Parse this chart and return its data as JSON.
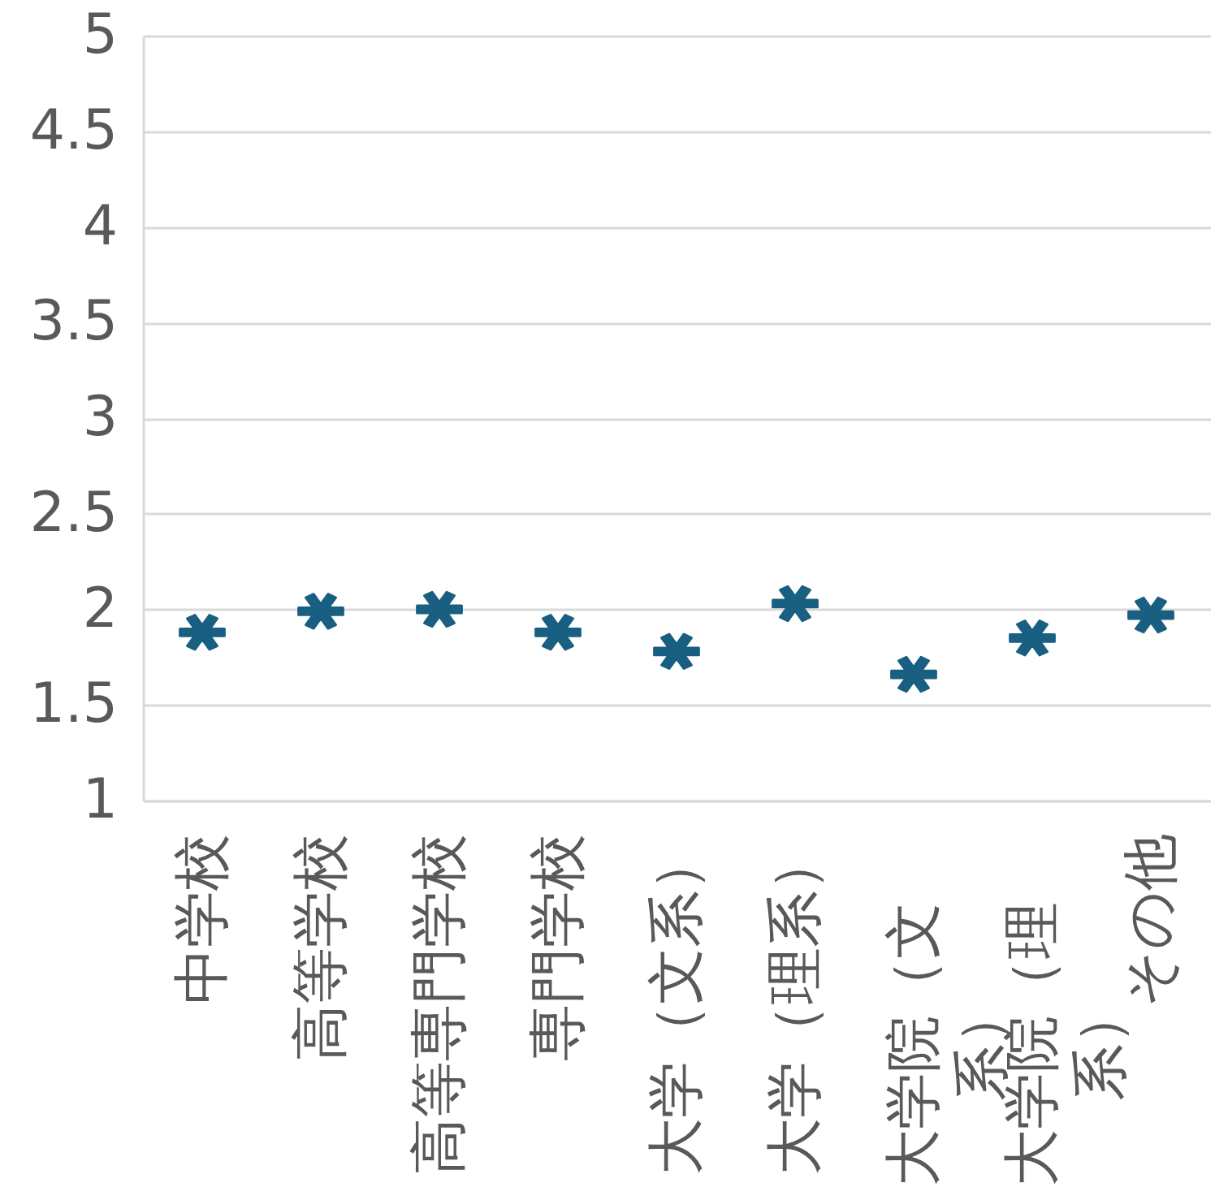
{
  "chart_data": {
    "type": "scatter",
    "categories": [
      "中学校",
      "高等学校",
      "高等専門学校",
      "専門学校",
      "大学（文系）",
      "大学（理系）",
      "大学院（文系）",
      "大学院（理系）",
      "その他"
    ],
    "series": [
      {
        "color": "#185f82",
        "values": [
          1.88,
          1.99,
          2.0,
          1.88,
          1.78,
          2.03,
          1.66,
          1.85,
          1.97
        ]
      }
    ],
    "ylim": [
      1,
      5
    ],
    "yticks": [
      1,
      1.5,
      2,
      2.5,
      3,
      3.5,
      4,
      4.5,
      5
    ],
    "grid": "y",
    "marker": "star"
  }
}
